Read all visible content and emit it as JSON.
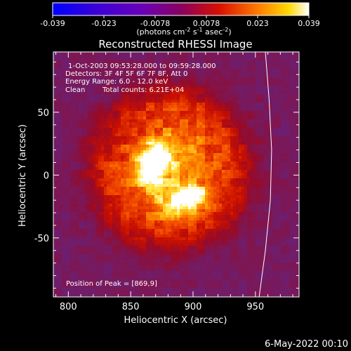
{
  "chart_data": {
    "type": "heatmap",
    "title": "Reconstructed RHESSI Image",
    "xlabel": "Heliocentric X (arcsec)",
    "ylabel": "Heliocentric Y (arcsec)",
    "xlim": [
      788,
      985
    ],
    "ylim": [
      -97,
      98
    ],
    "xticks": [
      800,
      850,
      900,
      950
    ],
    "yticks": [
      50,
      0,
      -50
    ],
    "colorbar": {
      "min": -0.039,
      "max": 0.039,
      "ticks": [
        "-0.039",
        "-0.023",
        "-0.0078",
        "0.0078",
        "0.023",
        "0.039"
      ],
      "label_main": "(photons cm",
      "label_sup1": "-2",
      "label_mid1": " s",
      "label_sup2": "-1",
      "label_mid2": " asec",
      "label_sup3": "-2",
      "label_end": ")"
    },
    "annotations": [
      "1-Oct-2003 09:53:28.000 to 09:59:28.000",
      "Detectors: 3F 4F 5F 6F 7F 8F, Att 0",
      "Energy Range: 6.0 - 12.0 keV",
      "Clean",
      "Total counts: 6.21E+04"
    ],
    "peak_label": "Position of Peak = [869,9]",
    "peak": [
      869,
      9
    ],
    "limb_curve": [
      [
        958,
        98
      ],
      [
        961,
        60
      ],
      [
        963,
        20
      ],
      [
        962,
        -20
      ],
      [
        958,
        -60
      ],
      [
        953,
        -97
      ]
    ],
    "sources": [
      {
        "x": 868,
        "y": 10,
        "sx": 8,
        "sy": 11,
        "amp": 0.039
      },
      {
        "x": 895,
        "y": -20,
        "sx": 11,
        "sy": 9,
        "amp": 0.031
      },
      {
        "x": 880,
        "y": 5,
        "sx": 20,
        "sy": 26,
        "amp": 0.014
      }
    ],
    "diffuse_disk": {
      "cx": 882,
      "cy": 5,
      "r": 62,
      "amp": 0.0125
    },
    "background": -0.0105
  },
  "footer": {
    "date": "6-May-2022 00:10"
  }
}
